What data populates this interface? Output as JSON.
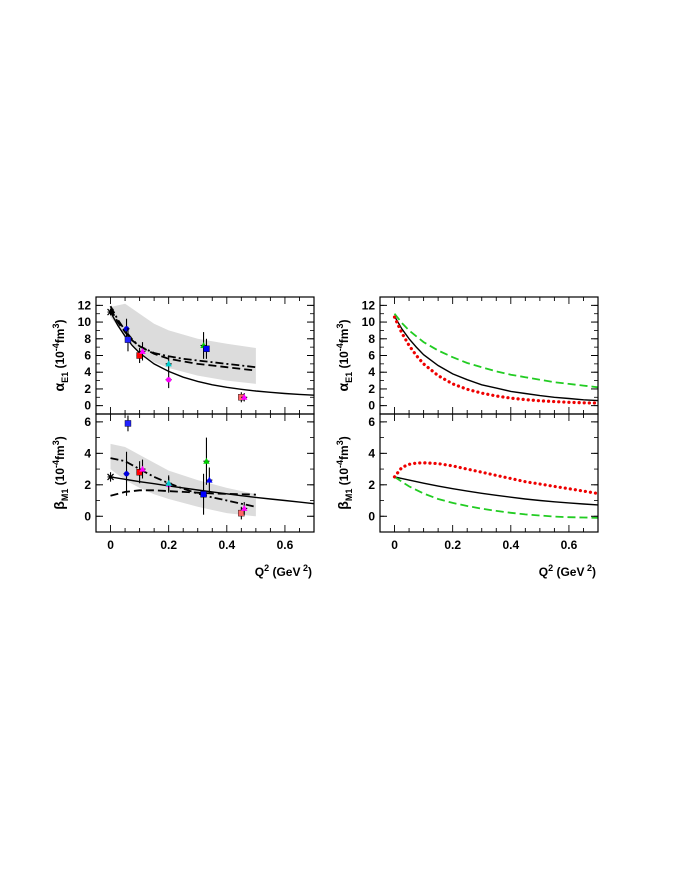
{
  "chart_data": [
    {
      "id": "alpha-left",
      "type": "line",
      "ylabel_main": "α",
      "ylabel_sub": "E1",
      "ylabel_units": " (10",
      "ylabel_exp": "-4",
      "ylabel_tail": "fm",
      "ylabel_exp2": "3",
      "ylabel_close": ")",
      "xlim": [
        -0.05,
        0.7
      ],
      "ylim": [
        -1,
        13
      ],
      "yticks": [
        0,
        2,
        4,
        6,
        8,
        10,
        12
      ],
      "band": {
        "x": [
          0.0,
          0.05,
          0.1,
          0.15,
          0.2,
          0.3,
          0.4,
          0.5
        ],
        "upper": [
          11.8,
          12.2,
          11.0,
          9.8,
          9.0,
          8.0,
          7.4,
          6.9
        ],
        "lower": [
          10.6,
          8.4,
          6.4,
          5.2,
          4.5,
          3.6,
          3.0,
          2.6
        ]
      },
      "series": [
        {
          "style": "solid",
          "color": "#000000",
          "x": [
            0.0,
            0.025,
            0.05,
            0.075,
            0.1,
            0.15,
            0.2,
            0.25,
            0.3,
            0.35,
            0.4,
            0.45,
            0.5,
            0.55,
            0.6,
            0.65,
            0.7
          ],
          "y": [
            11.2,
            9.6,
            8.3,
            7.2,
            6.3,
            5.0,
            4.1,
            3.4,
            2.9,
            2.5,
            2.2,
            1.95,
            1.75,
            1.6,
            1.45,
            1.35,
            1.25
          ]
        },
        {
          "style": "dashed",
          "color": "#000000",
          "x": [
            0.0,
            0.025,
            0.05,
            0.075,
            0.1,
            0.15,
            0.2,
            0.25,
            0.3,
            0.35,
            0.4,
            0.45,
            0.5
          ],
          "y": [
            11.6,
            10.0,
            8.8,
            7.8,
            7.1,
            6.2,
            5.6,
            5.3,
            5.0,
            4.8,
            4.6,
            4.4,
            4.2
          ]
        },
        {
          "style": "dashdot",
          "color": "#000000",
          "x": [
            0.0,
            0.025,
            0.05,
            0.075,
            0.1,
            0.15,
            0.2,
            0.25,
            0.3,
            0.35,
            0.4,
            0.45,
            0.5
          ],
          "y": [
            11.9,
            10.3,
            9.0,
            7.9,
            7.1,
            6.3,
            5.9,
            5.6,
            5.4,
            5.2,
            5.0,
            4.8,
            4.6
          ]
        }
      ],
      "points": [
        {
          "x": 0.0,
          "y": 11.2,
          "err": 0.4,
          "color": "#000000",
          "marker": "star"
        },
        {
          "x": 0.055,
          "y": 9.2,
          "err": 1.2,
          "color": "#0000dd",
          "marker": "circle"
        },
        {
          "x": 0.06,
          "y": 7.9,
          "err": 1.4,
          "color": "#2222ff",
          "marker": "square"
        },
        {
          "x": 0.1,
          "y": 6.0,
          "err": 0.9,
          "color": "#ff0000",
          "marker": "square"
        },
        {
          "x": 0.11,
          "y": 6.5,
          "err": 1.1,
          "color": "#ff00ff",
          "marker": "triangle"
        },
        {
          "x": 0.2,
          "y": 3.1,
          "err": 1.0,
          "color": "#ff00ff",
          "marker": "circle"
        },
        {
          "x": 0.2,
          "y": 5.0,
          "err": 1.0,
          "color": "#00cccc",
          "marker": "triangle"
        },
        {
          "x": 0.32,
          "y": 7.2,
          "err": 1.6,
          "color": "#00cc00",
          "marker": "triangle"
        },
        {
          "x": 0.33,
          "y": 6.8,
          "err": 1.2,
          "color": "#0000ff",
          "marker": "square"
        },
        {
          "x": 0.45,
          "y": 1.0,
          "err": 0.6,
          "color": "#ff6666",
          "marker": "square"
        },
        {
          "x": 0.46,
          "y": 1.0,
          "err": 0.5,
          "color": "#ff00ff",
          "marker": "triangle"
        }
      ]
    },
    {
      "id": "beta-left",
      "type": "line",
      "ylabel_main": "β",
      "ylabel_sub": "M1",
      "ylabel_units": " (10",
      "ylabel_exp": "-4",
      "ylabel_tail": "fm",
      "ylabel_exp2": "3",
      "ylabel_close": ")",
      "xlabel_main": "Q",
      "xlabel_exp": "2",
      "xlabel_units": " (GeV",
      "xlabel_exp2": " 2",
      "xlabel_close": ")",
      "xlim": [
        -0.05,
        0.7
      ],
      "ylim": [
        -1,
        6.5
      ],
      "yticks": [
        0,
        2,
        4,
        6
      ],
      "xticks": [
        0,
        0.2,
        0.4,
        0.6
      ],
      "xtick_labels": [
        "0",
        "0.2",
        "0.4",
        "0.6"
      ],
      "band": {
        "x": [
          0.0,
          0.05,
          0.1,
          0.15,
          0.2,
          0.3,
          0.4,
          0.5
        ],
        "upper": [
          4.6,
          4.4,
          3.9,
          3.4,
          2.9,
          2.3,
          1.8,
          1.4
        ],
        "lower": [
          3.0,
          2.3,
          1.8,
          1.4,
          1.1,
          0.6,
          0.2,
          0.0
        ]
      },
      "series": [
        {
          "style": "solid",
          "color": "#000000",
          "x": [
            0.0,
            0.05,
            0.1,
            0.15,
            0.2,
            0.25,
            0.3,
            0.35,
            0.4,
            0.45,
            0.5,
            0.55,
            0.6,
            0.65,
            0.7
          ],
          "y": [
            2.5,
            2.35,
            2.2,
            2.07,
            1.93,
            1.8,
            1.67,
            1.55,
            1.43,
            1.31,
            1.2,
            1.1,
            1.0,
            0.9,
            0.8
          ]
        },
        {
          "style": "dashed",
          "color": "#000000",
          "x": [
            0.0,
            0.05,
            0.1,
            0.15,
            0.2,
            0.25,
            0.3,
            0.35,
            0.4,
            0.45,
            0.5
          ],
          "y": [
            1.3,
            1.55,
            1.65,
            1.65,
            1.6,
            1.55,
            1.5,
            1.45,
            1.42,
            1.4,
            1.38
          ]
        },
        {
          "style": "dashdot",
          "color": "#000000",
          "x": [
            0.0,
            0.05,
            0.1,
            0.15,
            0.2,
            0.25,
            0.3,
            0.35,
            0.4,
            0.45,
            0.5
          ],
          "y": [
            3.7,
            3.5,
            3.0,
            2.5,
            2.1,
            1.75,
            1.45,
            1.2,
            1.0,
            0.8,
            0.6
          ]
        }
      ],
      "points": [
        {
          "x": 0.0,
          "y": 2.5,
          "err": 0.3,
          "color": "#000000",
          "marker": "star"
        },
        {
          "x": 0.055,
          "y": 2.7,
          "err": 1.4,
          "color": "#0000dd",
          "marker": "circle"
        },
        {
          "x": 0.06,
          "y": 5.9,
          "err": 0.5,
          "color": "#2222ff",
          "marker": "square"
        },
        {
          "x": 0.1,
          "y": 2.8,
          "err": 0.7,
          "color": "#ff0000",
          "marker": "square"
        },
        {
          "x": 0.11,
          "y": 3.0,
          "err": 0.6,
          "color": "#ff00ff",
          "marker": "triangle"
        },
        {
          "x": 0.2,
          "y": 2.0,
          "err": 0.5,
          "color": "#ff00ff",
          "marker": "circle"
        },
        {
          "x": 0.2,
          "y": 2.1,
          "err": 0.5,
          "color": "#00cccc",
          "marker": "triangle"
        },
        {
          "x": 0.32,
          "y": 1.4,
          "err": 1.3,
          "color": "#0000ff",
          "marker": "square"
        },
        {
          "x": 0.33,
          "y": 3.5,
          "err": 1.5,
          "color": "#00cc00",
          "marker": "triangle"
        },
        {
          "x": 0.34,
          "y": 2.3,
          "err": 0.8,
          "color": "#0000ff",
          "marker": "triangle"
        },
        {
          "x": 0.45,
          "y": 0.2,
          "err": 0.4,
          "color": "#ff6666",
          "marker": "square"
        },
        {
          "x": 0.46,
          "y": 0.5,
          "err": 0.4,
          "color": "#ff00ff",
          "marker": "triangle"
        }
      ]
    },
    {
      "id": "alpha-right",
      "type": "line",
      "ylabel_main": "α",
      "ylabel_sub": "E1",
      "ylabel_units": " (10",
      "ylabel_exp": "-4",
      "ylabel_tail": "fm",
      "ylabel_exp2": "3",
      "ylabel_close": ")",
      "xlim": [
        -0.05,
        0.7
      ],
      "ylim": [
        -1,
        13
      ],
      "yticks": [
        0,
        2,
        4,
        6,
        8,
        10,
        12
      ],
      "series": [
        {
          "style": "solid",
          "color": "#000000",
          "x": [
            0.0,
            0.025,
            0.05,
            0.075,
            0.1,
            0.15,
            0.2,
            0.25,
            0.3,
            0.35,
            0.4,
            0.45,
            0.5,
            0.55,
            0.6,
            0.65,
            0.7
          ],
          "y": [
            10.7,
            9.2,
            8.0,
            7.0,
            6.1,
            4.8,
            3.8,
            3.1,
            2.5,
            2.1,
            1.7,
            1.45,
            1.2,
            1.0,
            0.85,
            0.7,
            0.6
          ]
        },
        {
          "style": "dashed",
          "color": "#22cc22",
          "x": [
            0.0,
            0.025,
            0.05,
            0.075,
            0.1,
            0.15,
            0.2,
            0.25,
            0.3,
            0.35,
            0.4,
            0.45,
            0.5,
            0.55,
            0.6,
            0.65,
            0.7
          ],
          "y": [
            11.0,
            9.9,
            9.0,
            8.3,
            7.6,
            6.6,
            5.8,
            5.1,
            4.6,
            4.1,
            3.7,
            3.4,
            3.1,
            2.8,
            2.6,
            2.4,
            2.2
          ]
        },
        {
          "style": "dotted",
          "color": "#ee0000",
          "x": [
            0.0,
            0.025,
            0.05,
            0.075,
            0.1,
            0.15,
            0.2,
            0.25,
            0.3,
            0.35,
            0.4,
            0.45,
            0.5,
            0.55,
            0.6,
            0.65,
            0.7
          ],
          "y": [
            10.6,
            8.7,
            7.2,
            6.0,
            5.0,
            3.6,
            2.6,
            1.95,
            1.5,
            1.15,
            0.9,
            0.72,
            0.58,
            0.48,
            0.4,
            0.34,
            0.3
          ]
        }
      ]
    },
    {
      "id": "beta-right",
      "type": "line",
      "ylabel_main": "β",
      "ylabel_sub": "M1",
      "ylabel_units": " (10",
      "ylabel_exp": "-4",
      "ylabel_tail": "fm",
      "ylabel_exp2": "3",
      "ylabel_close": ")",
      "xlabel_main": "Q",
      "xlabel_exp": "2",
      "xlabel_units": " (GeV",
      "xlabel_exp2": " 2",
      "xlabel_close": ")",
      "xlim": [
        -0.05,
        0.7
      ],
      "ylim": [
        -1,
        6.5
      ],
      "yticks": [
        0,
        2,
        4,
        6
      ],
      "xticks": [
        0,
        0.2,
        0.4,
        0.6
      ],
      "xtick_labels": [
        "0",
        "0.2",
        "0.4",
        "0.6"
      ],
      "series": [
        {
          "style": "solid",
          "color": "#000000",
          "x": [
            0.0,
            0.05,
            0.1,
            0.15,
            0.2,
            0.25,
            0.3,
            0.35,
            0.4,
            0.45,
            0.5,
            0.55,
            0.6,
            0.65,
            0.7
          ],
          "y": [
            2.5,
            2.3,
            2.1,
            1.92,
            1.75,
            1.6,
            1.46,
            1.33,
            1.21,
            1.1,
            1.0,
            0.92,
            0.85,
            0.78,
            0.72
          ]
        },
        {
          "style": "dashed",
          "color": "#22cc22",
          "x": [
            0.0,
            0.05,
            0.1,
            0.15,
            0.2,
            0.25,
            0.3,
            0.35,
            0.4,
            0.45,
            0.5,
            0.55,
            0.6,
            0.65,
            0.7
          ],
          "y": [
            2.5,
            1.9,
            1.45,
            1.1,
            0.85,
            0.65,
            0.48,
            0.34,
            0.22,
            0.12,
            0.05,
            -0.02,
            -0.06,
            -0.08,
            -0.1
          ]
        },
        {
          "style": "dotted",
          "color": "#ee0000",
          "x": [
            0.0,
            0.025,
            0.05,
            0.075,
            0.1,
            0.15,
            0.2,
            0.25,
            0.3,
            0.35,
            0.4,
            0.45,
            0.5,
            0.55,
            0.6,
            0.65,
            0.7
          ],
          "y": [
            2.5,
            3.1,
            3.3,
            3.38,
            3.4,
            3.35,
            3.2,
            3.0,
            2.8,
            2.6,
            2.4,
            2.2,
            2.05,
            1.9,
            1.75,
            1.6,
            1.45
          ]
        }
      ]
    }
  ]
}
